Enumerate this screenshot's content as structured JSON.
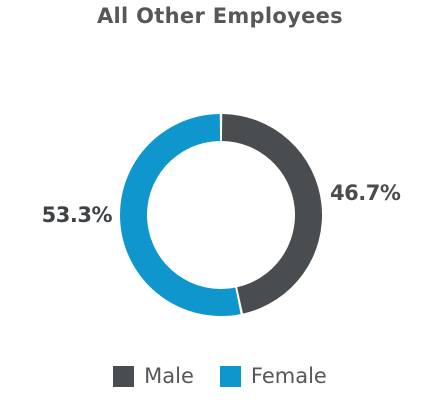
{
  "chart_data": {
    "type": "pie",
    "title": "All Other Employees",
    "donut": true,
    "slices": [
      {
        "name": "Male",
        "value": 46.7,
        "label": "46.7%",
        "color": "#4a4d50"
      },
      {
        "name": "Female",
        "value": 53.3,
        "label": "53.3%",
        "color": "#0f96cc"
      }
    ],
    "legend_placement": "bottom",
    "start": "top",
    "direction": "clockwise"
  },
  "colors": {
    "title": "#555759",
    "male_label": "#4a4d50",
    "female_label": "#3f4245",
    "legend_text": "#555759"
  }
}
